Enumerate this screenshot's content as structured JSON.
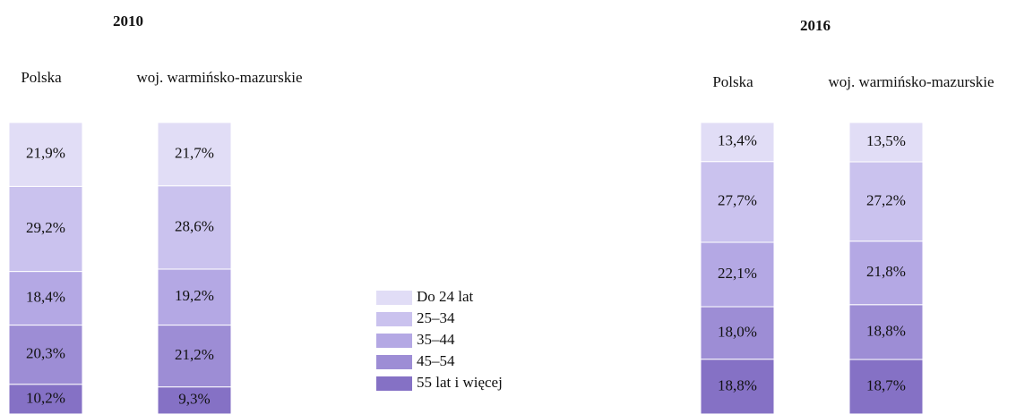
{
  "chart_data": {
    "type": "bar",
    "stacked": true,
    "ylim": [
      0,
      100
    ],
    "panels": [
      {
        "title": "2010",
        "categories": [
          "Polska",
          "woj. warmińsko-mazurskie"
        ]
      },
      {
        "title": "2016",
        "categories": [
          "Polska",
          "woj. warmińsko-mazurskie"
        ]
      }
    ],
    "series": [
      {
        "name": "Do 24 lat",
        "color": "#e1ddf6",
        "values": [
          [
            21.9,
            21.7
          ],
          [
            13.4,
            13.5
          ]
        ],
        "value_labels": [
          [
            "21,9%",
            "21,7%"
          ],
          [
            "13,4%",
            "13,5%"
          ]
        ]
      },
      {
        "name": "25–34",
        "color": "#cac2ee",
        "values": [
          [
            29.2,
            28.6
          ],
          [
            27.7,
            27.2
          ]
        ],
        "value_labels": [
          [
            "29,2%",
            "28,6%"
          ],
          [
            "27,7%",
            "27,2%"
          ]
        ]
      },
      {
        "name": "35–44",
        "color": "#b4a8e4",
        "values": [
          [
            18.4,
            19.2
          ],
          [
            22.1,
            21.8
          ]
        ],
        "value_labels": [
          [
            "18,4%",
            "19,2%"
          ],
          [
            "22,1%",
            "21,8%"
          ]
        ]
      },
      {
        "name": "45–54",
        "color": "#9d8dd5",
        "values": [
          [
            20.3,
            21.2
          ],
          [
            18.0,
            18.8
          ]
        ],
        "value_labels": [
          [
            "20,3%",
            "21,2%"
          ],
          [
            "18,0%",
            "18,8%"
          ]
        ]
      },
      {
        "name": "55 lat i więcej",
        "color": "#8571c5",
        "values": [
          [
            10.2,
            9.3
          ],
          [
            18.8,
            18.7
          ]
        ],
        "value_labels": [
          [
            "10,2%",
            "9,3%"
          ],
          [
            "18,8%",
            "18,7%"
          ]
        ]
      }
    ]
  }
}
